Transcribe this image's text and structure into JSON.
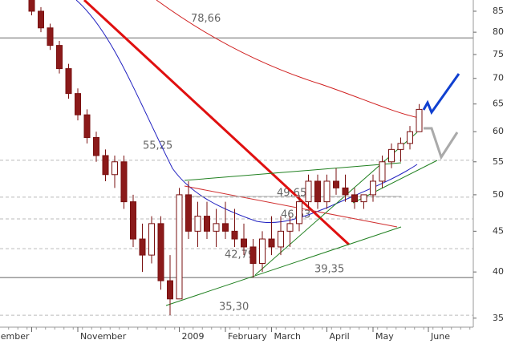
{
  "chart_data": {
    "type": "candlestick",
    "categories": [
      null,
      null,
      null,
      "ember",
      null,
      null,
      null,
      null,
      "November",
      null,
      null,
      null,
      null,
      null,
      null,
      null,
      null,
      null,
      null,
      "2009",
      null,
      null,
      null,
      null,
      "February",
      null,
      null,
      null,
      null,
      "March",
      null,
      null,
      null,
      null,
      null,
      "April",
      null,
      null,
      null,
      null,
      "May",
      null,
      null,
      null,
      null,
      null,
      "June",
      null,
      null,
      null,
      null
    ],
    "open": [
      null,
      null,
      null,
      88,
      85,
      81,
      77,
      72,
      67,
      63,
      59,
      56,
      53,
      55,
      49,
      44,
      42,
      46,
      39,
      37,
      50,
      45,
      47,
      45,
      46,
      45,
      44,
      43,
      41,
      44,
      43,
      45,
      46,
      49,
      52,
      49,
      52,
      51,
      50,
      49,
      50,
      52,
      55,
      57,
      58,
      60,
      null,
      null,
      null,
      null,
      null
    ],
    "high": [
      null,
      null,
      null,
      89,
      86,
      82,
      78,
      73,
      68,
      64,
      60,
      57,
      56,
      56,
      50,
      46,
      47,
      47,
      42,
      51,
      52,
      49,
      49,
      48,
      49,
      48,
      46,
      44,
      45,
      47,
      47,
      47,
      50,
      53,
      53,
      53,
      54,
      53,
      51,
      50,
      53,
      56,
      58,
      59,
      61,
      65,
      null,
      null,
      null,
      null,
      null
    ],
    "low": [
      null,
      null,
      null,
      84,
      80,
      76,
      71,
      66,
      62,
      58,
      55,
      52,
      51,
      48,
      43,
      40,
      41,
      38,
      35.3,
      37,
      44,
      43,
      44,
      43,
      44,
      43,
      42,
      39.35,
      40,
      42,
      42,
      43,
      45,
      48,
      48,
      48,
      50,
      49,
      48,
      48,
      49,
      51,
      54,
      55,
      57,
      60,
      null,
      null,
      null,
      null,
      null
    ],
    "close": [
      null,
      null,
      null,
      85,
      81,
      77,
      72,
      67,
      63,
      59,
      56,
      53,
      55,
      49,
      44,
      42,
      46,
      39,
      37,
      50,
      45,
      47,
      45,
      46,
      45,
      44,
      43,
      41,
      44,
      43,
      45,
      46,
      49,
      52,
      49,
      52,
      51,
      50,
      49,
      50,
      52,
      55,
      57,
      58,
      60,
      64,
      null,
      null,
      null,
      null,
      null
    ],
    "up_color": "#ffffff",
    "down_color": "#8b1a1a",
    "outline_color": "#7a1010",
    "log_scale": true,
    "ylim": [
      34.1,
      87.8
    ],
    "yticks": [
      35,
      40,
      45,
      50,
      55,
      60,
      65,
      70,
      75,
      80,
      85
    ],
    "annotations": [
      {
        "value": 78.66,
        "label": "78,66"
      },
      {
        "value": 55.25,
        "label": "55,25"
      },
      {
        "value": 49.65,
        "label": "49,65"
      },
      {
        "value": 46.63,
        "label": "46,63"
      },
      {
        "value": 42.79,
        "label": "42,79"
      },
      {
        "value": 39.35,
        "label": "39,35"
      },
      {
        "value": 35.3,
        "label": "35,30"
      }
    ]
  }
}
